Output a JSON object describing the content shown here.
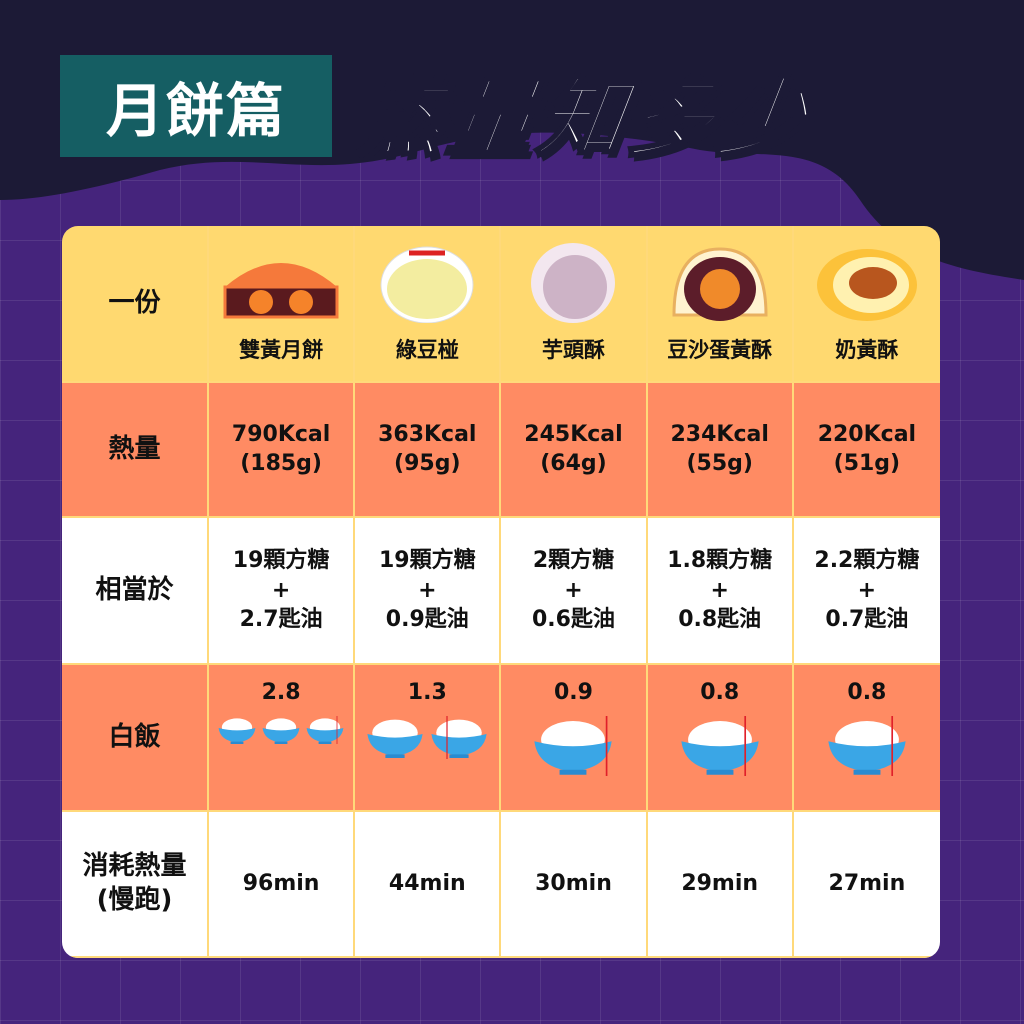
{
  "header": {
    "badge": "月餅篇",
    "title": "熱量知多少"
  },
  "colors": {
    "background": "#45247c",
    "top_wave": "#1c1a36",
    "badge": "#155e63",
    "row_yellow": "#ffd970",
    "row_orange": "#ff8b63",
    "rice_marker": "#e0202a"
  },
  "row_labels": {
    "portion": "一份",
    "calories": "熱量",
    "equivalent": "相當於",
    "rice": "白飯",
    "burn": "消耗熱量\n(慢跑)"
  },
  "items": [
    {
      "name": "雙黃月餅",
      "icon": "double-yolk-mooncake-icon",
      "kcal": "790Kcal",
      "weight": "(185g)",
      "sugar": "19顆方糖",
      "plus": "+",
      "oil": "2.7匙油",
      "rice": 2.8,
      "rice_label": "2.8",
      "burn": "96min"
    },
    {
      "name": "綠豆椪",
      "icon": "mung-bean-pastry-icon",
      "kcal": "363Kcal",
      "weight": "(95g)",
      "sugar": "19顆方糖",
      "plus": "+",
      "oil": "0.9匙油",
      "rice": 1.3,
      "rice_label": "1.3",
      "burn": "44min"
    },
    {
      "name": "芋頭酥",
      "icon": "taro-pastry-icon",
      "kcal": "245Kcal",
      "weight": "(64g)",
      "sugar": "2顆方糖",
      "plus": "+",
      "oil": "0.6匙油",
      "rice": 0.9,
      "rice_label": "0.9",
      "burn": "30min"
    },
    {
      "name": "豆沙蛋黃酥",
      "icon": "red-bean-yolk-pastry-icon",
      "kcal": "234Kcal",
      "weight": "(55g)",
      "sugar": "1.8顆方糖",
      "plus": "+",
      "oil": "0.8匙油",
      "rice": 0.8,
      "rice_label": "0.8",
      "burn": "29min"
    },
    {
      "name": "奶黃酥",
      "icon": "custard-pastry-icon",
      "kcal": "220Kcal",
      "weight": "(51g)",
      "sugar": "2.2顆方糖",
      "plus": "+",
      "oil": "0.7匙油",
      "rice": 0.8,
      "rice_label": "0.8",
      "burn": "27min"
    }
  ]
}
